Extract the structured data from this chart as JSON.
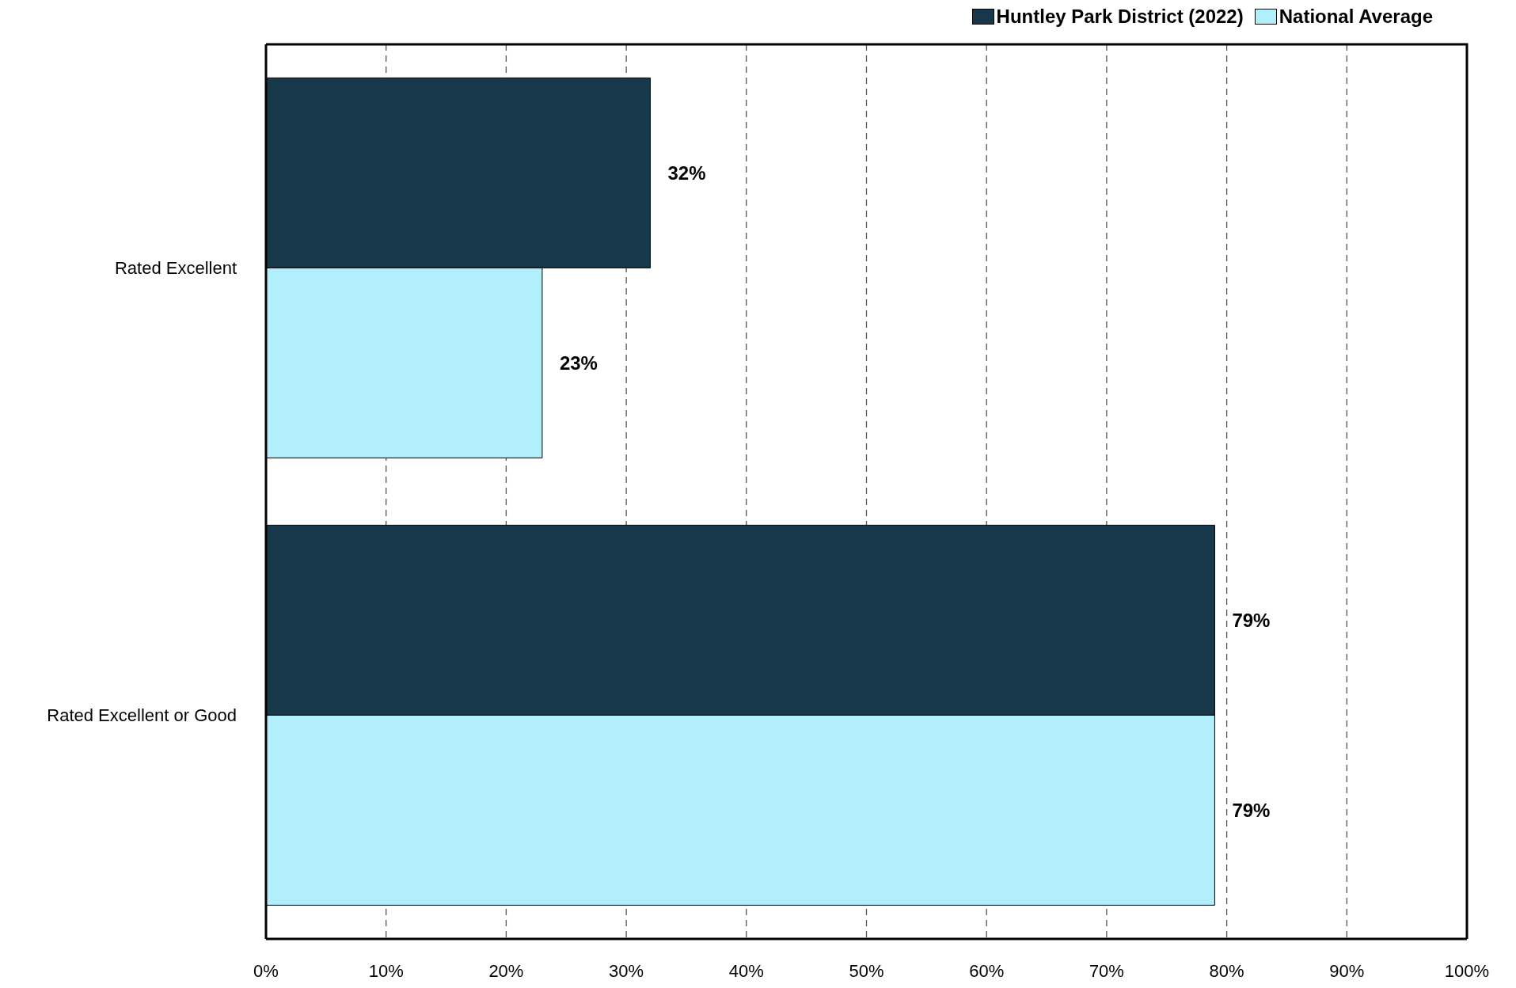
{
  "chart_data": {
    "type": "bar",
    "orientation": "horizontal",
    "categories": [
      "Rated Excellent",
      "Rated Excellent or Good"
    ],
    "series": [
      {
        "name": "Huntley Park District (2022)",
        "color": "#17374b",
        "values": [
          32,
          79
        ],
        "value_labels": [
          "32%",
          "79%"
        ]
      },
      {
        "name": "National Average",
        "color": "#b1effd",
        "values": [
          23,
          79
        ],
        "value_labels": [
          "23%",
          "79%"
        ]
      }
    ],
    "xlim": [
      0,
      100
    ],
    "xticks": [
      {
        "value": 0,
        "label": "0%"
      },
      {
        "value": 10,
        "label": "10%"
      },
      {
        "value": 20,
        "label": "20%"
      },
      {
        "value": 30,
        "label": "30%"
      },
      {
        "value": 40,
        "label": "40%"
      },
      {
        "value": 50,
        "label": "50%"
      },
      {
        "value": 60,
        "label": "60%"
      },
      {
        "value": 70,
        "label": "70%"
      },
      {
        "value": 80,
        "label": "80%"
      },
      {
        "value": 90,
        "label": "90%"
      },
      {
        "value": 100,
        "label": "100%"
      }
    ],
    "grid": "x",
    "legend": "top right"
  }
}
